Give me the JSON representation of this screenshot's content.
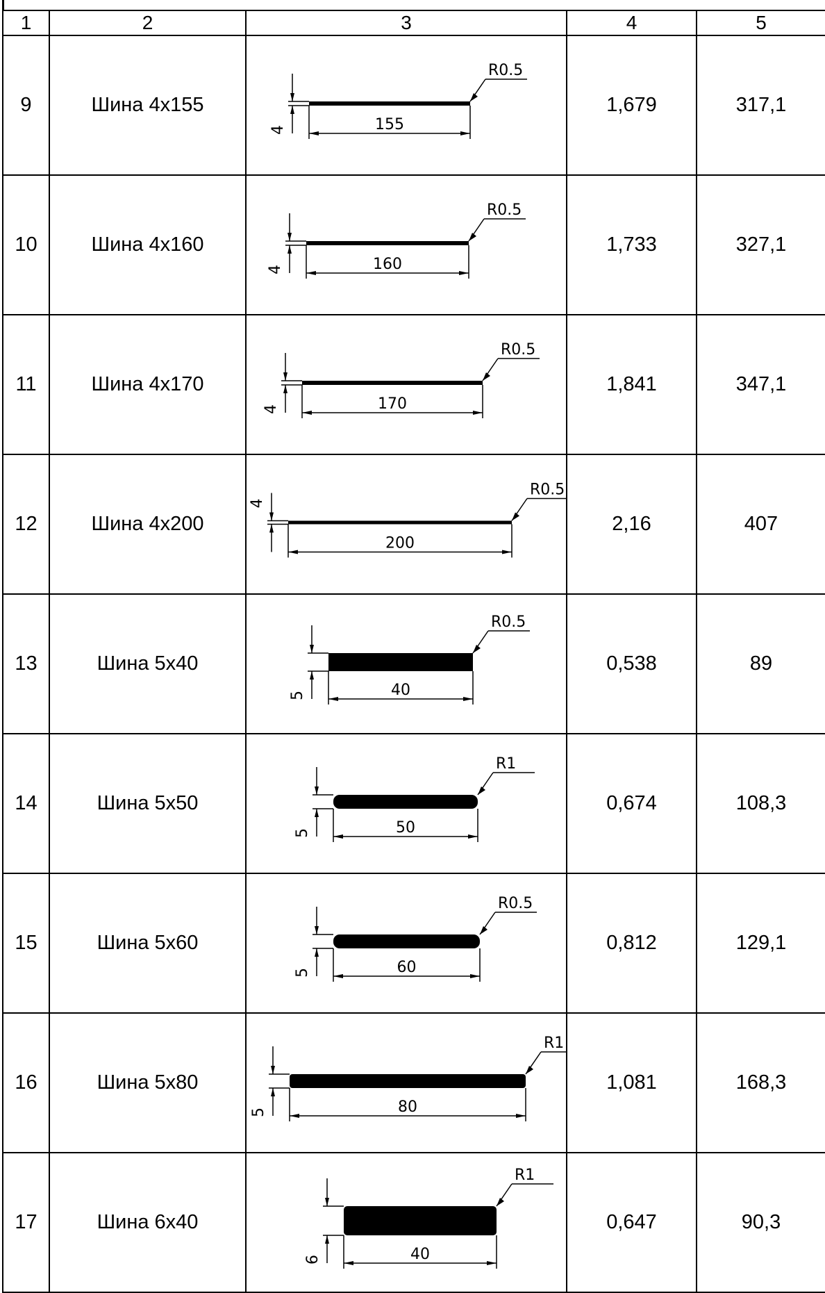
{
  "header": [
    "1",
    "2",
    "3",
    "4",
    "5"
  ],
  "rows": [
    {
      "num": "9",
      "name": "Шина 4x155",
      "width_label": "155",
      "thick_label": "4",
      "radius_label": "R0.5",
      "col4": "1,679",
      "col5": "317,1"
    },
    {
      "num": "10",
      "name": "Шина 4x160",
      "width_label": "160",
      "thick_label": "4",
      "radius_label": "R0.5",
      "col4": "1,733",
      "col5": "327,1"
    },
    {
      "num": "11",
      "name": "Шина 4x170",
      "width_label": "170",
      "thick_label": "4",
      "radius_label": "R0.5",
      "col4": "1,841",
      "col5": "347,1"
    },
    {
      "num": "12",
      "name": "Шина 4x200",
      "width_label": "200",
      "thick_label": "4",
      "radius_label": "R0.5",
      "col4": "2,16",
      "col5": "407"
    },
    {
      "num": "13",
      "name": "Шина 5x40",
      "width_label": "40",
      "thick_label": "5",
      "radius_label": "R0.5",
      "col4": "0,538",
      "col5": "89"
    },
    {
      "num": "14",
      "name": "Шина 5x50",
      "width_label": "50",
      "thick_label": "5",
      "radius_label": "R1",
      "col4": "0,674",
      "col5": "108,3"
    },
    {
      "num": "15",
      "name": "Шина 5x60",
      "width_label": "60",
      "thick_label": "5",
      "radius_label": "R0.5",
      "col4": "0,812",
      "col5": "129,1"
    },
    {
      "num": "16",
      "name": "Шина 5x80",
      "width_label": "80",
      "thick_label": "5",
      "radius_label": "R1",
      "col4": "1,081",
      "col5": "168,3"
    },
    {
      "num": "17",
      "name": "Шина 6x40",
      "width_label": "40",
      "thick_label": "6",
      "radius_label": "R1",
      "col4": "0,647",
      "col5": "90,3"
    }
  ]
}
